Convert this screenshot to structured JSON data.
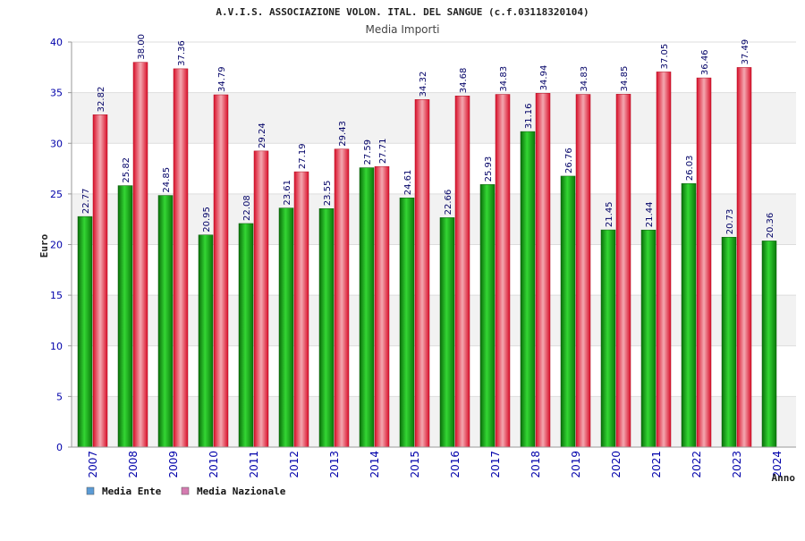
{
  "chart_data": {
    "type": "bar",
    "title": "A.V.I.S. ASSOCIAZIONE VOLON. ITAL. DEL SANGUE (c.f.03118320104)",
    "subtitle": "Media Importi",
    "ylabel": "Euro",
    "xlabel": "Anno",
    "ylim": [
      0,
      40
    ],
    "yticks": [
      "0",
      "5",
      "10",
      "15",
      "20",
      "25",
      "30",
      "35",
      "40"
    ],
    "categories": [
      "2007",
      "2008",
      "2009",
      "2010",
      "2011",
      "2012",
      "2013",
      "2014",
      "2015",
      "2016",
      "2017",
      "2018",
      "2019",
      "2020",
      "2021",
      "2022",
      "2023",
      "2024"
    ],
    "series": [
      {
        "name": "Media Ente",
        "color": "#1aa81a",
        "legend_color": "#5b9bd5",
        "values": [
          22.77,
          25.82,
          24.85,
          20.95,
          22.08,
          23.61,
          23.55,
          27.59,
          24.61,
          22.66,
          25.93,
          31.16,
          26.76,
          21.45,
          21.44,
          26.03,
          20.73,
          20.36
        ],
        "labels": [
          "22.77",
          "25.82",
          "24.85",
          "20.95",
          "22.08",
          "23.61",
          "23.55",
          "27.59",
          "24.61",
          "22.66",
          "25.93",
          "31.16",
          "26.76",
          "21.45",
          "21.44",
          "26.03",
          "20.73",
          "20.36"
        ]
      },
      {
        "name": "Media Nazionale",
        "color": "#e8283a",
        "legend_color": "#d47bb0",
        "values": [
          32.82,
          38.0,
          37.36,
          34.79,
          29.24,
          27.19,
          29.43,
          27.71,
          34.32,
          34.68,
          34.83,
          34.94,
          34.83,
          34.85,
          37.05,
          36.46,
          37.49,
          null
        ],
        "labels": [
          "32.82",
          "38.00",
          "37.36",
          "34.79",
          "29.24",
          "27.19",
          "29.43",
          "27.71",
          "34.32",
          "34.68",
          "34.83",
          "34.94",
          "34.83",
          "34.85",
          "37.05",
          "36.46",
          "37.49",
          null
        ]
      }
    ],
    "legend_position": "bottom-left",
    "grid": true
  }
}
